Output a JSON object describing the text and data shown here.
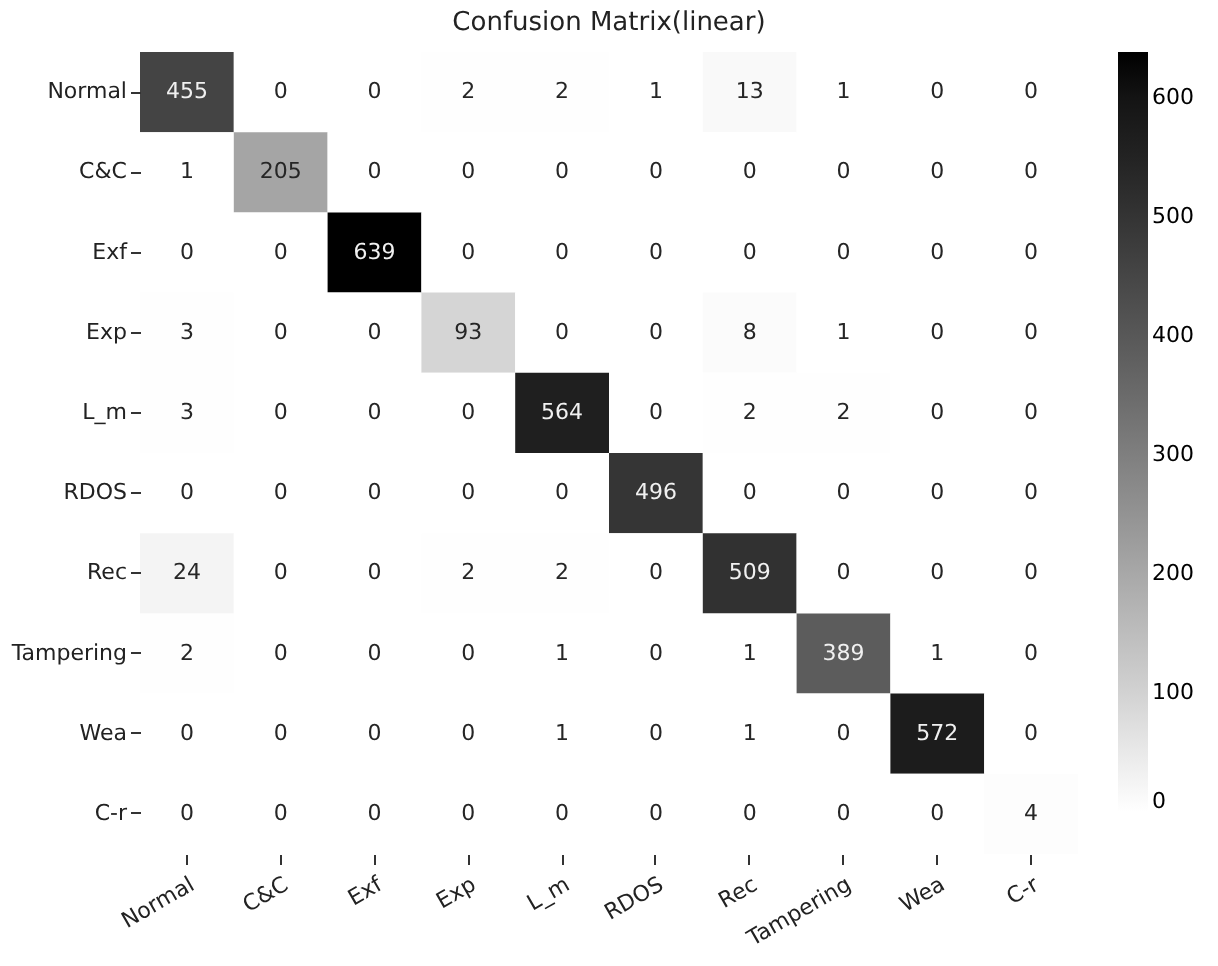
{
  "chart_data": {
    "type": "heatmap",
    "title": "Confusion Matrix(linear)",
    "categories": [
      "Normal",
      "C&C",
      "Exf",
      "Exp",
      "L_m",
      "RDOS",
      "Rec",
      "Tampering",
      "Wea",
      "C-r"
    ],
    "y_categories": [
      "Normal",
      "C&C",
      "Exf",
      "Exp",
      "L_m",
      "RDOS",
      "Rec",
      "Tampering",
      "Wea",
      "C-r"
    ],
    "cells": [
      [
        455,
        0,
        0,
        2,
        2,
        1,
        13,
        1,
        0,
        0
      ],
      [
        1,
        205,
        0,
        0,
        0,
        0,
        0,
        0,
        0,
        0
      ],
      [
        0,
        0,
        639,
        0,
        0,
        0,
        0,
        0,
        0,
        0
      ],
      [
        3,
        0,
        0,
        93,
        0,
        0,
        8,
        1,
        0,
        0
      ],
      [
        3,
        0,
        0,
        0,
        564,
        0,
        2,
        2,
        0,
        0
      ],
      [
        0,
        0,
        0,
        0,
        0,
        496,
        0,
        0,
        0,
        0
      ],
      [
        24,
        0,
        0,
        2,
        2,
        0,
        509,
        0,
        0,
        0
      ],
      [
        2,
        0,
        0,
        0,
        1,
        0,
        1,
        389,
        1,
        0
      ],
      [
        0,
        0,
        0,
        0,
        1,
        0,
        1,
        0,
        572,
        0
      ],
      [
        0,
        0,
        0,
        0,
        0,
        0,
        0,
        0,
        0,
        4
      ]
    ],
    "clim": [
      0,
      639
    ],
    "cticks": [
      0,
      100,
      200,
      300,
      400,
      500,
      600
    ],
    "data_labels": true
  }
}
